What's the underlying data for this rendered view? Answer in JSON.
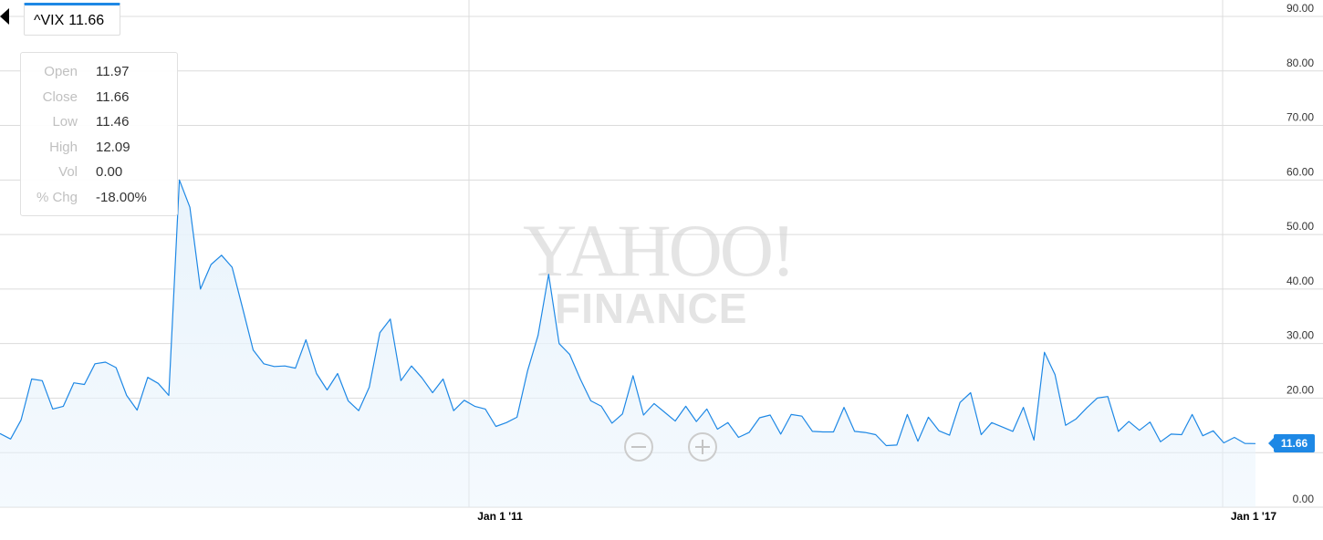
{
  "ticker": {
    "symbol": "^VIX",
    "price": "11.66"
  },
  "ohlc": [
    {
      "label": "Open",
      "value": "11.97"
    },
    {
      "label": "Close",
      "value": "11.66"
    },
    {
      "label": "Low",
      "value": "11.46"
    },
    {
      "label": "High",
      "value": "12.09"
    },
    {
      "label": "Vol",
      "value": "0.00"
    },
    {
      "label": "% Chg",
      "value": "-18.00%"
    }
  ],
  "watermark": {
    "line1": "YAHOO!",
    "line2": "FINANCE"
  },
  "last_price_label": "11.66",
  "colors": {
    "line": "#1e88e5",
    "fill": "#e8f3fc",
    "grid": "#d9d9d9",
    "label_bg": "#1e88e5"
  },
  "icons": {
    "back": "triangle-left-icon",
    "zoom_out": "minus-circle-icon",
    "zoom_in": "plus-circle-icon"
  },
  "chart_data": {
    "type": "area",
    "title": "",
    "xlabel": "",
    "ylabel": "",
    "ylim": [
      0,
      90
    ],
    "y_ticks": [
      "0.00",
      "10.00",
      "20.00",
      "30.00",
      "40.00",
      "50.00",
      "60.00",
      "70.00",
      "80.00",
      "90.00"
    ],
    "x_tick_labels": [
      "Jan 1 '11",
      "Jan 1 '17"
    ],
    "grid": true,
    "series": [
      {
        "name": "^VIX",
        "values": [
          13.5,
          12.5,
          16.0,
          23.5,
          23.2,
          18.0,
          18.5,
          22.8,
          22.5,
          26.3,
          26.6,
          25.6,
          20.5,
          17.8,
          23.8,
          22.7,
          20.5,
          60.0,
          55.0,
          40.0,
          44.5,
          46.2,
          44.0,
          36.5,
          28.8,
          26.3,
          25.8,
          25.9,
          25.5,
          30.7,
          24.5,
          21.5,
          24.5,
          19.5,
          17.7,
          22.0,
          32.0,
          34.5,
          23.2,
          25.9,
          23.7,
          21.0,
          23.5,
          17.7,
          19.6,
          18.5,
          18.0,
          14.8,
          15.5,
          16.5,
          25.0,
          31.5,
          42.7,
          30.0,
          28.0,
          23.5,
          19.5,
          18.5,
          15.4,
          17.1,
          24.1,
          16.9,
          19.0,
          17.4,
          15.8,
          18.5,
          15.7,
          18.0,
          14.3,
          15.5,
          12.8,
          13.7,
          16.4,
          16.9,
          13.4,
          17.0,
          16.7,
          13.9,
          13.8,
          13.8,
          18.3,
          13.9,
          13.7,
          13.3,
          11.3,
          11.4,
          17.0,
          12.1,
          16.5,
          14.0,
          13.2,
          19.2,
          21.0,
          13.3,
          15.5,
          14.7,
          13.9,
          18.3,
          12.3,
          28.4,
          24.3,
          15.0,
          16.2,
          18.2,
          20.0,
          20.3,
          13.9,
          15.7,
          14.1,
          15.6,
          12.0,
          13.4,
          13.3,
          17.0,
          13.1,
          14.0,
          11.8,
          12.8,
          11.7,
          11.66
        ]
      }
    ]
  }
}
